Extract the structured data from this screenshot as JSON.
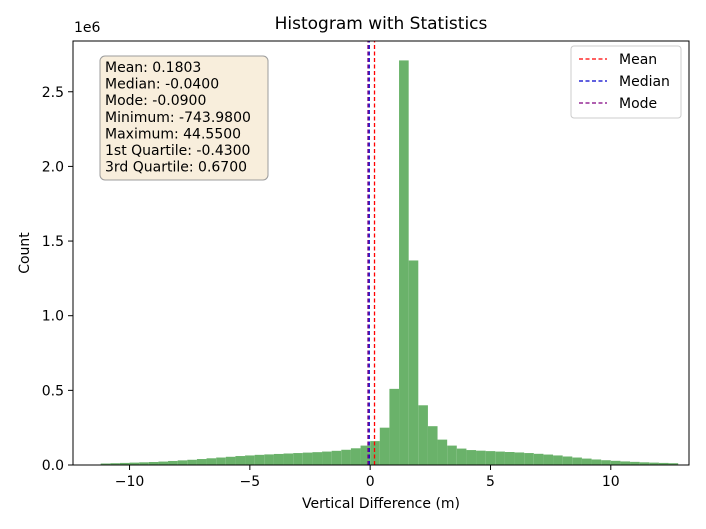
{
  "chart_data": {
    "type": "bar",
    "title": "Histogram with Statistics",
    "xlabel": "Vertical Difference (m)",
    "ylabel": "Count",
    "y_multiplier_label": "1e6",
    "xlim": [
      -12.35,
      13.25
    ],
    "ylim": [
      0,
      2.84
    ],
    "x_ticks": [
      -10,
      -5,
      0,
      5,
      10
    ],
    "x_tick_labels": [
      "−10",
      "−5",
      "0",
      "5",
      "10"
    ],
    "y_ticks": [
      0.0,
      0.5,
      1.0,
      1.5,
      2.0,
      2.5
    ],
    "y_tick_labels": [
      "0.0",
      "0.5",
      "1.0",
      "1.5",
      "2.0",
      "2.5"
    ],
    "bar_color": "#6ab26a",
    "bin_edges_start": -11.2,
    "bin_width": 0.4,
    "values": [
      0.01,
      0.012,
      0.014,
      0.016,
      0.018,
      0.02,
      0.023,
      0.027,
      0.031,
      0.035,
      0.04,
      0.045,
      0.05,
      0.055,
      0.06,
      0.064,
      0.068,
      0.071,
      0.074,
      0.077,
      0.08,
      0.083,
      0.086,
      0.09,
      0.095,
      0.102,
      0.112,
      0.13,
      0.16,
      0.25,
      0.51,
      2.71,
      1.37,
      0.4,
      0.26,
      0.17,
      0.13,
      0.11,
      0.1,
      0.096,
      0.093,
      0.09,
      0.087,
      0.084,
      0.08,
      0.075,
      0.07,
      0.064,
      0.057,
      0.05,
      0.043,
      0.037,
      0.032,
      0.028,
      0.024,
      0.021,
      0.018,
      0.016,
      0.014,
      0.012
    ],
    "reference_lines": [
      {
        "name": "Mean",
        "x": 0.1803,
        "color": "#ff0000"
      },
      {
        "name": "Median",
        "x": -0.04,
        "color": "#0000cc"
      },
      {
        "name": "Mode",
        "x": -0.09,
        "color": "#800080"
      }
    ],
    "legend_placement": "top-right",
    "stats_box": [
      "Mean: 0.1803",
      "Median: -0.0400",
      "Mode: -0.0900",
      "Minimum: -743.9800",
      "Maximum: 44.5500",
      "1st Quartile: -0.4300",
      "3rd Quartile: 0.6700"
    ]
  }
}
